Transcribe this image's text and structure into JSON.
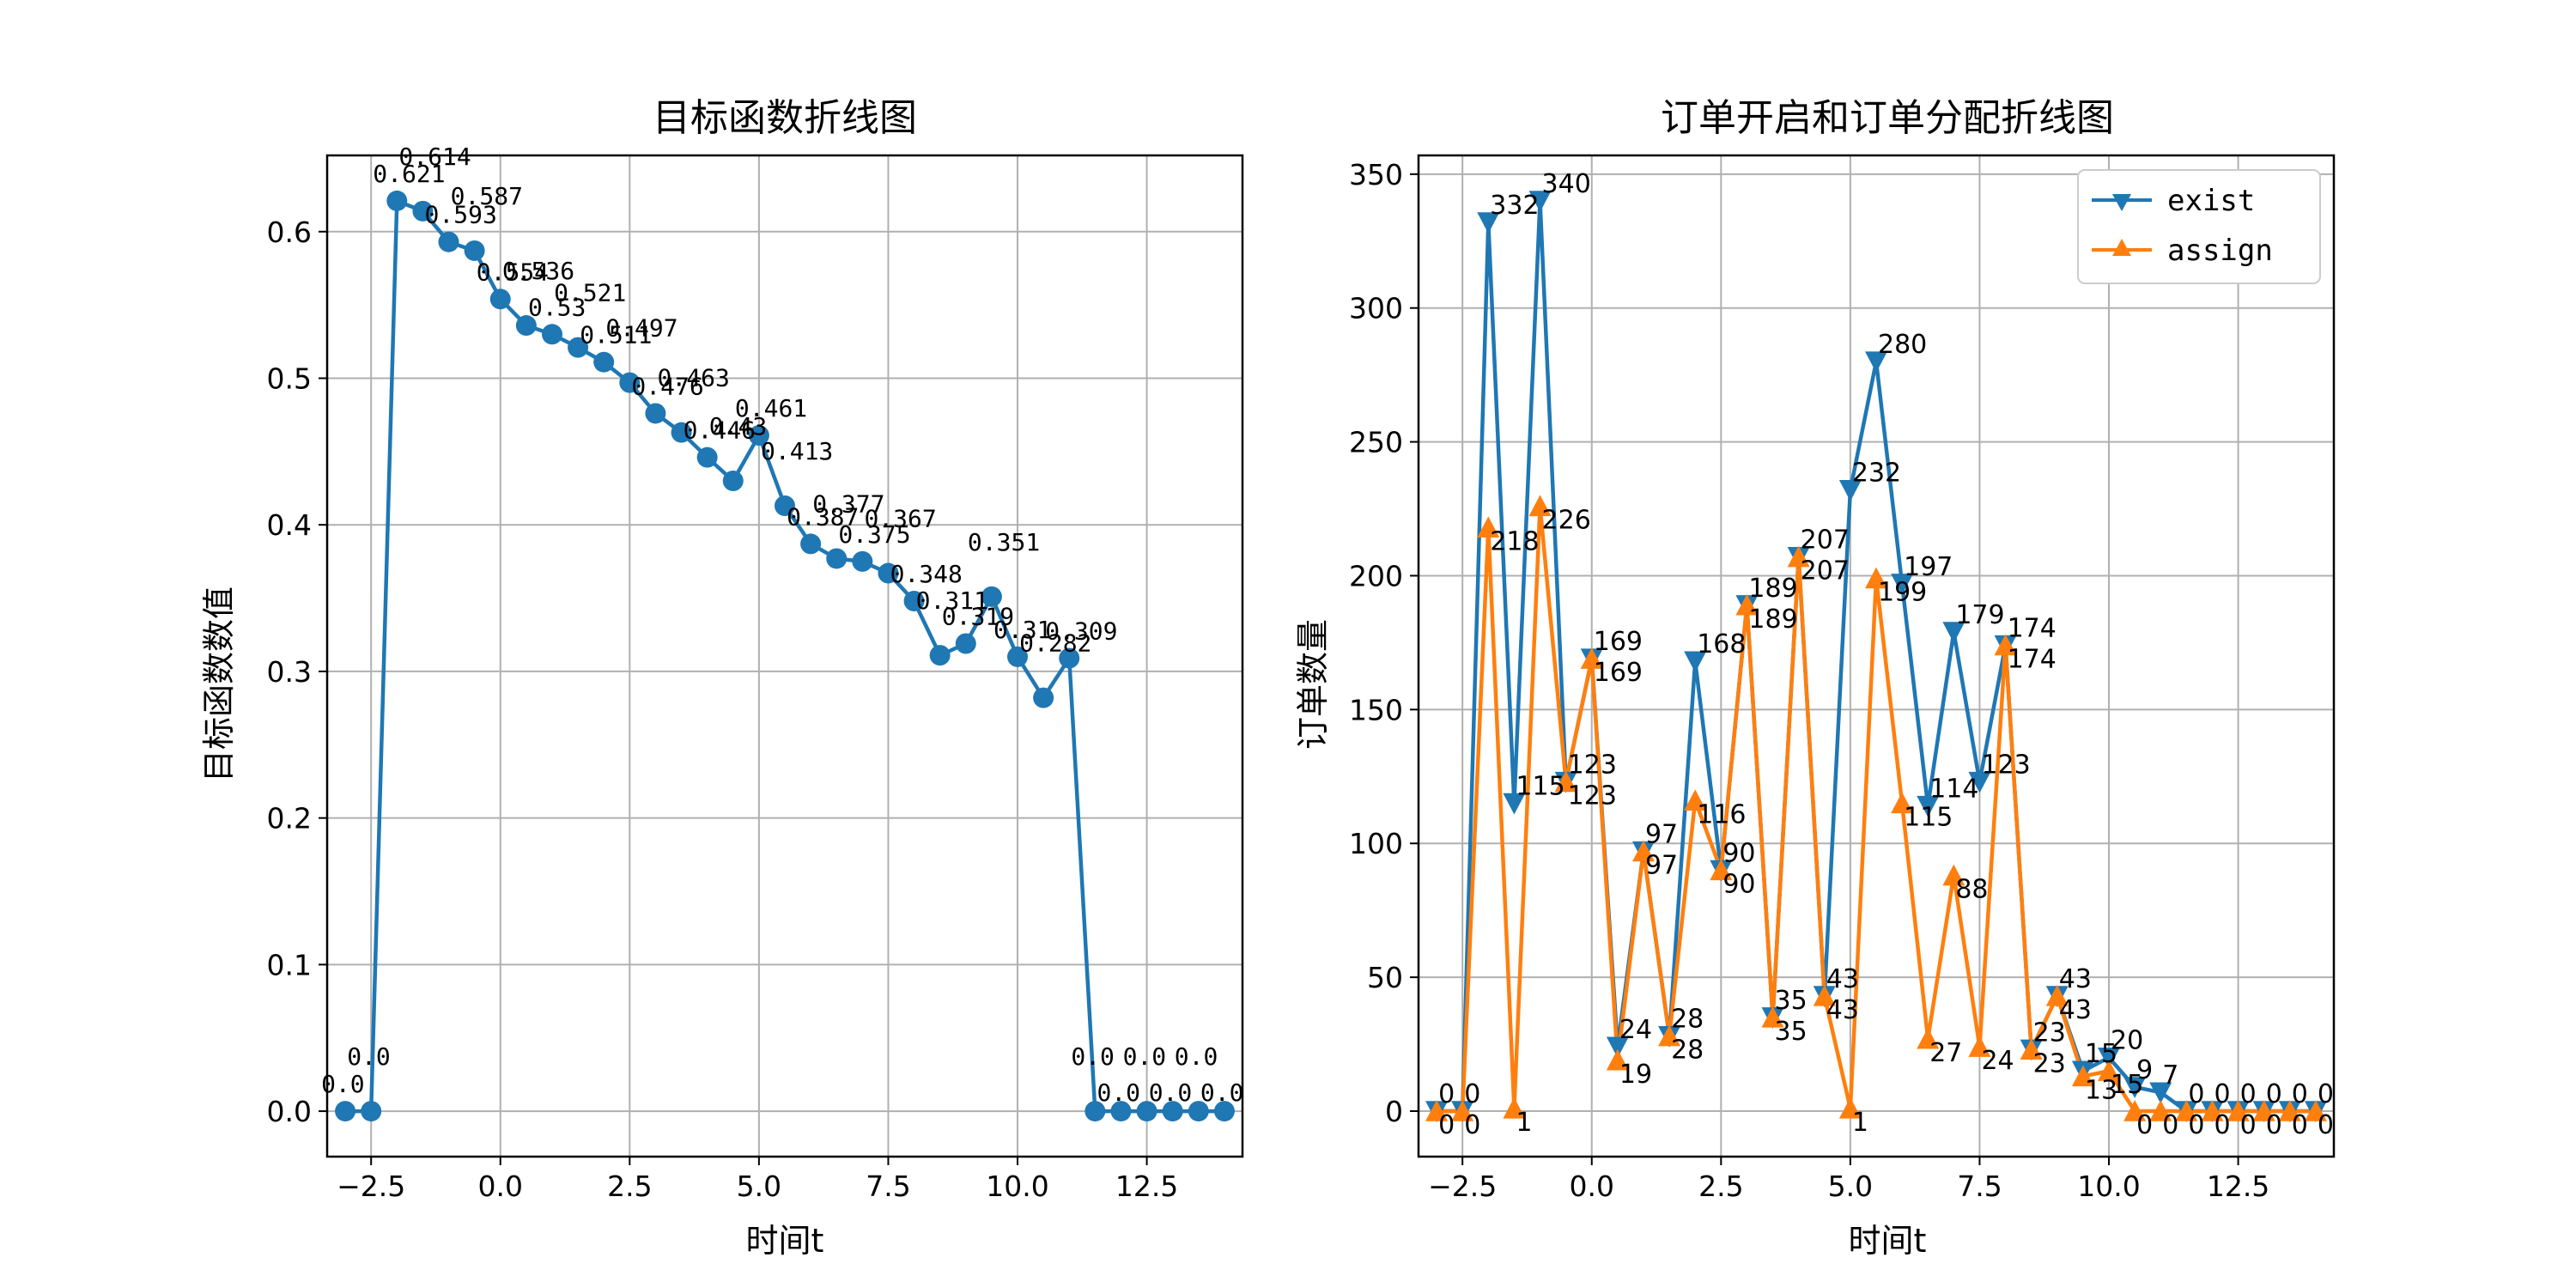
{
  "chart_data": [
    {
      "type": "line",
      "title": "目标函数折线图",
      "xlabel": "时间t",
      "ylabel": "目标函数数值",
      "xlim": [
        -3.35,
        14.35
      ],
      "ylim": [
        -0.031,
        0.652
      ],
      "xticks": [
        -2.5,
        0.0,
        2.5,
        5.0,
        7.5,
        10.0,
        12.5
      ],
      "xtick_labels": [
        "−2.5",
        "0.0",
        "2.5",
        "5.0",
        "7.5",
        "10.0",
        "12.5"
      ],
      "yticks": [
        0.0,
        0.1,
        0.2,
        0.3,
        0.4,
        0.5,
        0.6
      ],
      "ytick_labels": [
        "0.0",
        "0.1",
        "0.2",
        "0.3",
        "0.4",
        "0.5",
        "0.6"
      ],
      "grid": true,
      "color": "#1f77b4",
      "marker": "circle",
      "x": [
        -3.0,
        -2.5,
        -2.0,
        -1.5,
        -1.0,
        -0.5,
        0.0,
        0.5,
        1.0,
        1.5,
        2.0,
        2.5,
        3.0,
        3.5,
        4.0,
        4.5,
        5.0,
        5.5,
        6.0,
        6.5,
        7.0,
        7.5,
        8.0,
        8.5,
        9.0,
        9.5,
        10.0,
        10.5,
        11.0,
        11.5,
        12.0,
        12.5,
        13.0,
        13.5,
        14.0
      ],
      "y": [
        0.0,
        0.0,
        0.621,
        0.614,
        0.593,
        0.587,
        0.554,
        0.536,
        0.53,
        0.521,
        0.511,
        0.497,
        0.476,
        0.463,
        0.446,
        0.43,
        0.461,
        0.413,
        0.387,
        0.377,
        0.375,
        0.367,
        0.348,
        0.311,
        0.319,
        0.351,
        0.31,
        0.282,
        0.309,
        0.0,
        0.0,
        0.0,
        0.0,
        0.0,
        0.0
      ],
      "labels": [
        "0.0",
        "0.0",
        "0.621",
        "0.614",
        "0.593",
        "0.587",
        "0.554",
        "0.536",
        "0.53",
        "0.521",
        "0.511",
        "0.497",
        "0.476",
        "0.463",
        "0.446",
        "0.43",
        "0.461",
        "0.413",
        "0.387",
        "0.377",
        "0.375",
        "0.367",
        "0.348",
        "0.311",
        "0.319",
        "0.351",
        "0.31",
        "0.282",
        "0.309",
        "0.0",
        "0.0",
        "0.0",
        "0.0",
        "0.0",
        "0.0"
      ]
    },
    {
      "type": "line",
      "title": "订单开启和订单分配折线图",
      "xlabel": "时间t",
      "ylabel": "订单数量",
      "xlim": [
        -3.35,
        14.35
      ],
      "ylim": [
        -17,
        357
      ],
      "xticks": [
        -2.5,
        0.0,
        2.5,
        5.0,
        7.5,
        10.0,
        12.5
      ],
      "xtick_labels": [
        "−2.5",
        "0.0",
        "2.5",
        "5.0",
        "7.5",
        "10.0",
        "12.5"
      ],
      "yticks": [
        0,
        50,
        100,
        150,
        200,
        250,
        300,
        350
      ],
      "ytick_labels": [
        "0",
        "50",
        "100",
        "150",
        "200",
        "250",
        "300",
        "350"
      ],
      "grid": true,
      "legend": "top-right",
      "x": [
        -3.0,
        -2.5,
        -2.0,
        -1.5,
        -1.0,
        -0.5,
        0.0,
        0.5,
        1.0,
        1.5,
        2.0,
        2.5,
        3.0,
        3.5,
        4.0,
        4.5,
        5.0,
        5.5,
        6.0,
        6.5,
        7.0,
        7.5,
        8.0,
        8.5,
        9.0,
        9.5,
        10.0,
        10.5,
        11.0,
        11.5,
        12.0,
        12.5,
        13.0,
        13.5,
        14.0
      ],
      "series": [
        {
          "name": "exist",
          "color": "#1f77b4",
          "marker": "triangle-down",
          "values": [
            0,
            0,
            332,
            115,
            340,
            123,
            169,
            24,
            97,
            28,
            168,
            90,
            189,
            35,
            207,
            43,
            232,
            280,
            197,
            114,
            179,
            123,
            174,
            23,
            43,
            15,
            20,
            9,
            7,
            0,
            0,
            0,
            0,
            0,
            0
          ],
          "labels": [
            "0",
            "0",
            "332",
            "115",
            "340",
            "123",
            "169",
            "24",
            "97",
            "28",
            "168",
            "90",
            "189",
            "35",
            "207",
            "43",
            "232",
            "280",
            "197",
            "114",
            "179",
            "123",
            "174",
            "23",
            "43",
            "15",
            "20",
            "9",
            "7",
            "0",
            "0",
            "0",
            "0",
            "0",
            "0"
          ]
        },
        {
          "name": "assign",
          "color": "#ff7f0e",
          "marker": "triangle-up",
          "values": [
            0,
            0,
            218,
            1,
            226,
            123,
            169,
            19,
            97,
            28,
            116,
            90,
            189,
            35,
            207,
            43,
            1,
            199,
            115,
            27,
            88,
            24,
            174,
            23,
            43,
            13,
            15,
            0,
            0,
            0,
            0,
            0,
            0,
            0,
            0
          ],
          "labels": [
            "0",
            "0",
            "218",
            "1",
            "226",
            "123",
            "169",
            "19",
            "97",
            "28",
            "116",
            "90",
            "189",
            "35",
            "207",
            "43",
            "1",
            "199",
            "115",
            "27",
            "88",
            "24",
            "174",
            "23",
            "43",
            "13",
            "15",
            "0",
            "0",
            "0",
            "0",
            "0",
            "0",
            "0",
            "0"
          ]
        }
      ]
    }
  ]
}
